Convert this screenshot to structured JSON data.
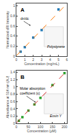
{
  "chart_data": [
    {
      "type": "scatter",
      "xlabel": "Concentration (mg/mL)",
      "ylabel": "Normalized dRI Intensity",
      "xlim": [
        0,
        6
      ],
      "ylim": [
        0,
        1.05
      ],
      "xticks": [
        0,
        1,
        2,
        3,
        4,
        5,
        6
      ],
      "yticks": [
        0,
        0.2,
        0.4,
        0.6,
        0.8,
        1
      ],
      "grid": false,
      "annotations": [
        "A",
        "dn/dc",
        "Polystyrene"
      ],
      "series": [
        {
          "type": "scatter",
          "marker": "square",
          "x": [
            0.5,
            1.0,
            2.0,
            3.0,
            5.0
          ],
          "values": [
            0.09,
            0.18,
            0.37,
            0.52,
            0.93
          ]
        },
        {
          "type": "line",
          "line_style": "dashed",
          "x": [
            0.0,
            5.6
          ],
          "values": [
            0.01,
            0.975
          ]
        }
      ]
    },
    {
      "type": "scatter",
      "xlabel": "Concentration (μM)",
      "ylabel": "Absorbance at 514 nm (AU)",
      "xlim": [
        0,
        210
      ],
      "ylim": [
        0,
        1.45
      ],
      "xticks": [
        0,
        50,
        100,
        150,
        200
      ],
      "yticks": [
        0,
        0.2,
        0.4,
        0.6,
        0.8,
        1,
        1.2,
        1.4
      ],
      "grid": false,
      "annotations": [
        "B",
        "Molar absorption\ncoefficient (ε)",
        "Eosin Y"
      ],
      "series": [
        {
          "type": "scatter",
          "marker": "square",
          "x": [
            10,
            25,
            50,
            75,
            100,
            150,
            200
          ],
          "values": [
            0.07,
            0.17,
            0.35,
            0.52,
            0.7,
            1.05,
            1.38
          ]
        },
        {
          "type": "line",
          "line_style": "dashed",
          "x": [
            0.0,
            205
          ],
          "values": [
            0.01,
            1.41
          ]
        }
      ]
    }
  ]
}
